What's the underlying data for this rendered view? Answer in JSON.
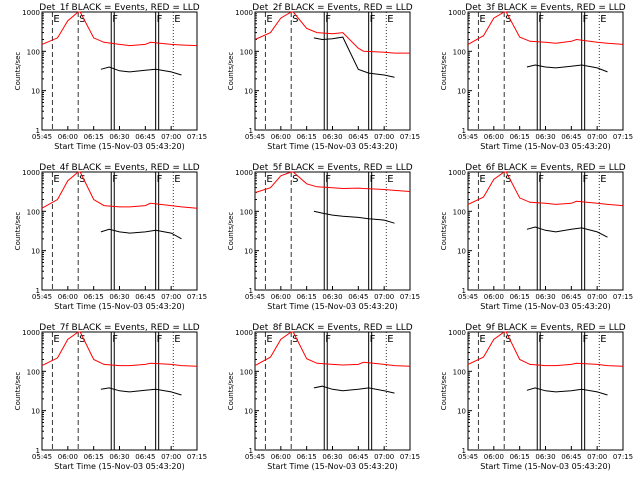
{
  "chart_data": [
    {
      "type": "line",
      "title": "Det_1f BLACK = Events, RED = LLD",
      "xlabel": "Start Time (15-Nov-03 05:43:20)",
      "ylabel": "Counts/sec",
      "yscale": "log",
      "ylim": [
        1,
        1000
      ],
      "x_ticks": [
        "05:45",
        "06:00",
        "06:15",
        "06:30",
        "06:45",
        "07:00",
        "07:15"
      ],
      "y_ticks": [
        "1",
        "10",
        "100",
        "1000"
      ],
      "markers": [
        "E",
        "S",
        "F",
        "F",
        "E"
      ],
      "series": [
        {
          "color": "#ff0000",
          "x": [
            5.75,
            5.9,
            6.0,
            6.1,
            6.12,
            6.25,
            6.35,
            6.5,
            6.6,
            6.75,
            6.8,
            7.0,
            7.1,
            7.25
          ],
          "y": [
            150,
            220,
            600,
            1000,
            1000,
            220,
            170,
            150,
            140,
            150,
            170,
            150,
            145,
            140
          ]
        },
        {
          "color": "#000000",
          "x": [
            6.32,
            6.4,
            6.5,
            6.6,
            6.75,
            6.85,
            7.0,
            7.1
          ],
          "y": [
            35,
            40,
            32,
            30,
            33,
            35,
            30,
            25
          ]
        }
      ]
    },
    {
      "type": "line",
      "title": "Det_2f BLACK = Events, RED = LLD",
      "xlabel": "Start Time (15-Nov-03 05:43:20)",
      "ylabel": "Counts/sec",
      "yscale": "log",
      "ylim": [
        1,
        1000
      ],
      "x_ticks": [
        "05:45",
        "06:00",
        "06:15",
        "06:30",
        "06:45",
        "07:00",
        "07:15"
      ],
      "y_ticks": [
        "1",
        "10",
        "100",
        "1000"
      ],
      "markers": [
        "E",
        "S",
        "F",
        "F",
        "E"
      ],
      "series": [
        {
          "color": "#ff0000",
          "x": [
            5.75,
            5.9,
            6.0,
            6.1,
            6.12,
            6.25,
            6.35,
            6.5,
            6.6,
            6.75,
            6.8,
            7.0,
            7.1,
            7.25
          ],
          "y": [
            200,
            300,
            700,
            1000,
            1000,
            380,
            300,
            280,
            300,
            120,
            100,
            95,
            90,
            90
          ]
        },
        {
          "color": "#000000",
          "x": [
            6.32,
            6.4,
            6.5,
            6.6,
            6.75,
            6.85,
            7.0,
            7.1
          ],
          "y": [
            220,
            200,
            210,
            230,
            35,
            28,
            25,
            22
          ]
        }
      ]
    },
    {
      "type": "line",
      "title": "Det_3f BLACK = Events, RED = LLD",
      "xlabel": "Start Time (15-Nov-03 05:43:20)",
      "ylabel": "Counts/sec",
      "yscale": "log",
      "ylim": [
        1,
        1000
      ],
      "x_ticks": [
        "05:45",
        "06:00",
        "06:15",
        "06:30",
        "06:45",
        "07:00",
        "07:15"
      ],
      "y_ticks": [
        "1",
        "10",
        "100",
        "1000"
      ],
      "markers": [
        "E",
        "S",
        "F",
        "F",
        "E"
      ],
      "series": [
        {
          "color": "#ff0000",
          "x": [
            5.75,
            5.9,
            6.0,
            6.1,
            6.12,
            6.25,
            6.35,
            6.5,
            6.6,
            6.75,
            6.8,
            7.0,
            7.1,
            7.25
          ],
          "y": [
            150,
            250,
            700,
            1000,
            1000,
            230,
            180,
            170,
            160,
            180,
            200,
            170,
            160,
            150
          ]
        },
        {
          "color": "#000000",
          "x": [
            6.32,
            6.4,
            6.5,
            6.6,
            6.75,
            6.85,
            7.0,
            7.1
          ],
          "y": [
            40,
            45,
            40,
            38,
            42,
            45,
            38,
            30
          ]
        }
      ]
    },
    {
      "type": "line",
      "title": "Det_4f BLACK = Events, RED = LLD",
      "xlabel": "Start Time (15-Nov-03 05:43:20)",
      "ylabel": "Counts/sec",
      "yscale": "log",
      "ylim": [
        1,
        1000
      ],
      "x_ticks": [
        "05:45",
        "06:00",
        "06:15",
        "06:30",
        "06:45",
        "07:00",
        "07:15"
      ],
      "y_ticks": [
        "1",
        "10",
        "100",
        "1000"
      ],
      "markers": [
        "E",
        "S",
        "F",
        "F",
        "E"
      ],
      "series": [
        {
          "color": "#ff0000",
          "x": [
            5.75,
            5.9,
            6.0,
            6.1,
            6.12,
            6.25,
            6.35,
            6.5,
            6.6,
            6.75,
            6.8,
            7.0,
            7.1,
            7.25
          ],
          "y": [
            120,
            200,
            600,
            1000,
            1000,
            200,
            140,
            130,
            130,
            140,
            160,
            140,
            130,
            120
          ]
        },
        {
          "color": "#000000",
          "x": [
            6.32,
            6.4,
            6.5,
            6.6,
            6.75,
            6.85,
            7.0,
            7.1
          ],
          "y": [
            30,
            35,
            30,
            28,
            30,
            33,
            28,
            20
          ]
        }
      ]
    },
    {
      "type": "line",
      "title": "Det_5f BLACK = Events, RED = LLD",
      "xlabel": "Start Time (15-Nov-03 05:43:20)",
      "ylabel": "Counts/sec",
      "yscale": "log",
      "ylim": [
        1,
        1000
      ],
      "x_ticks": [
        "05:45",
        "06:00",
        "06:15",
        "06:30",
        "06:45",
        "07:00",
        "07:15"
      ],
      "y_ticks": [
        "1",
        "10",
        "100",
        "1000"
      ],
      "markers": [
        "E",
        "S",
        "F",
        "F",
        "E"
      ],
      "series": [
        {
          "color": "#ff0000",
          "x": [
            5.75,
            5.9,
            6.0,
            6.1,
            6.12,
            6.25,
            6.35,
            6.5,
            6.6,
            6.75,
            6.8,
            7.0,
            7.1,
            7.25
          ],
          "y": [
            300,
            400,
            800,
            1000,
            1000,
            500,
            420,
            400,
            380,
            390,
            380,
            360,
            340,
            320
          ]
        },
        {
          "color": "#000000",
          "x": [
            6.32,
            6.4,
            6.5,
            6.6,
            6.75,
            6.85,
            7.0,
            7.1
          ],
          "y": [
            100,
            90,
            80,
            75,
            70,
            65,
            60,
            50
          ]
        }
      ]
    },
    {
      "type": "line",
      "title": "Det_6f BLACK = Events, RED = LLD",
      "xlabel": "Start Time (15-Nov-03 05:43:20)",
      "ylabel": "Counts/sec",
      "yscale": "log",
      "ylim": [
        1,
        1000
      ],
      "x_ticks": [
        "05:45",
        "06:00",
        "06:15",
        "06:30",
        "06:45",
        "07:00",
        "07:15"
      ],
      "y_ticks": [
        "1",
        "10",
        "100",
        "1000"
      ],
      "markers": [
        "E",
        "S",
        "F",
        "F",
        "E"
      ],
      "series": [
        {
          "color": "#ff0000",
          "x": [
            5.75,
            5.9,
            6.0,
            6.1,
            6.12,
            6.25,
            6.35,
            6.5,
            6.6,
            6.75,
            6.8,
            7.0,
            7.1,
            7.25
          ],
          "y": [
            150,
            230,
            650,
            1000,
            1000,
            220,
            170,
            160,
            150,
            160,
            180,
            160,
            150,
            140
          ]
        },
        {
          "color": "#000000",
          "x": [
            6.32,
            6.4,
            6.5,
            6.6,
            6.75,
            6.85,
            7.0,
            7.1
          ],
          "y": [
            35,
            40,
            33,
            30,
            35,
            38,
            30,
            22
          ]
        }
      ]
    },
    {
      "type": "line",
      "title": "Det_7f BLACK = Events, RED = LLD",
      "xlabel": "Start Time (15-Nov-03 05:43:20)",
      "ylabel": "Counts/sec",
      "yscale": "log",
      "ylim": [
        1,
        1000
      ],
      "x_ticks": [
        "05:45",
        "06:00",
        "06:15",
        "06:30",
        "06:45",
        "07:00",
        "07:15"
      ],
      "y_ticks": [
        "1",
        "10",
        "100",
        "1000"
      ],
      "markers": [
        "E",
        "S",
        "F",
        "F",
        "E"
      ],
      "series": [
        {
          "color": "#ff0000",
          "x": [
            5.75,
            5.9,
            6.0,
            6.1,
            6.12,
            6.25,
            6.35,
            6.5,
            6.6,
            6.75,
            6.8,
            7.0,
            7.1,
            7.25
          ],
          "y": [
            140,
            220,
            650,
            1000,
            1000,
            200,
            150,
            140,
            140,
            150,
            160,
            150,
            140,
            135
          ]
        },
        {
          "color": "#000000",
          "x": [
            6.32,
            6.4,
            6.5,
            6.6,
            6.75,
            6.85,
            7.0,
            7.1
          ],
          "y": [
            35,
            38,
            32,
            30,
            33,
            35,
            30,
            25
          ]
        }
      ]
    },
    {
      "type": "line",
      "title": "Det_8f BLACK = Events, RED = LLD",
      "xlabel": "Start Time (15-Nov-03 05:43:20)",
      "ylabel": "Counts/sec",
      "yscale": "log",
      "ylim": [
        1,
        1000
      ],
      "x_ticks": [
        "05:45",
        "06:00",
        "06:15",
        "06:30",
        "06:45",
        "07:00",
        "07:15"
      ],
      "y_ticks": [
        "1",
        "10",
        "100",
        "1000"
      ],
      "markers": [
        "E",
        "S",
        "F",
        "F",
        "E"
      ],
      "series": [
        {
          "color": "#ff0000",
          "x": [
            5.75,
            5.9,
            6.0,
            6.1,
            6.12,
            6.25,
            6.35,
            6.5,
            6.6,
            6.75,
            6.8,
            7.0,
            7.1,
            7.25
          ],
          "y": [
            140,
            230,
            650,
            1000,
            1000,
            210,
            160,
            150,
            145,
            150,
            170,
            150,
            140,
            135
          ]
        },
        {
          "color": "#000000",
          "x": [
            6.32,
            6.4,
            6.5,
            6.6,
            6.75,
            6.85,
            7.0,
            7.1
          ],
          "y": [
            38,
            42,
            35,
            32,
            35,
            38,
            32,
            28
          ]
        }
      ]
    },
    {
      "type": "line",
      "title": "Det_9f BLACK = Events, RED = LLD",
      "xlabel": "Start Time (15-Nov-03 05:43:20)",
      "ylabel": "Counts/sec",
      "yscale": "log",
      "ylim": [
        1,
        1000
      ],
      "x_ticks": [
        "05:45",
        "06:00",
        "06:15",
        "06:30",
        "06:45",
        "07:00",
        "07:15"
      ],
      "y_ticks": [
        "1",
        "10",
        "100",
        "1000"
      ],
      "markers": [
        "E",
        "S",
        "F",
        "F",
        "E"
      ],
      "series": [
        {
          "color": "#ff0000",
          "x": [
            5.75,
            5.9,
            6.0,
            6.1,
            6.12,
            6.25,
            6.35,
            6.5,
            6.6,
            6.75,
            6.8,
            7.0,
            7.1,
            7.25
          ],
          "y": [
            150,
            230,
            650,
            1000,
            1000,
            200,
            150,
            140,
            140,
            150,
            160,
            150,
            140,
            135
          ]
        },
        {
          "color": "#000000",
          "x": [
            6.32,
            6.4,
            6.5,
            6.6,
            6.75,
            6.85,
            7.0,
            7.1
          ],
          "y": [
            33,
            38,
            32,
            30,
            32,
            35,
            30,
            25
          ]
        }
      ]
    }
  ]
}
